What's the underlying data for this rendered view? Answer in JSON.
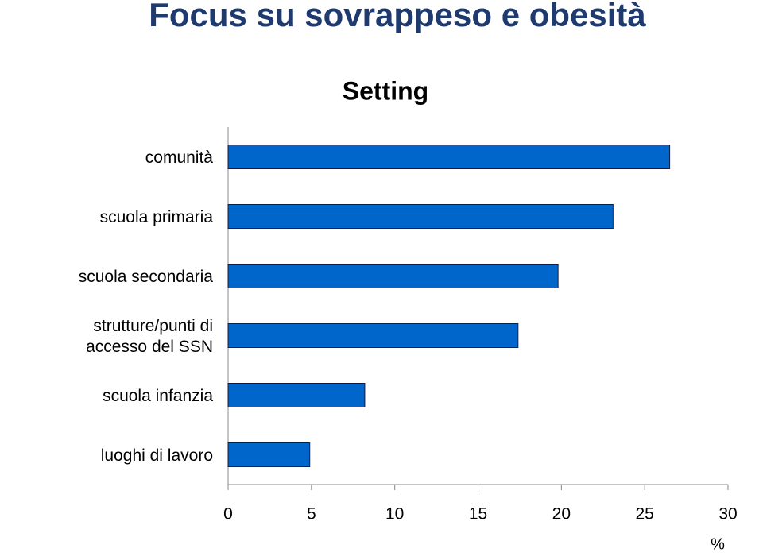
{
  "header": {
    "title": "Focus su sovrappeso e obesità"
  },
  "chart_data": {
    "type": "bar",
    "orientation": "horizontal",
    "title": "Setting",
    "xlabel": "%",
    "categories": [
      "comunità",
      "scuola primaria",
      "scuola secondaria",
      "strutture/punti di accesso del SSN",
      "scuola infanzia",
      "luoghi di lavoro"
    ],
    "values": [
      26.5,
      23.1,
      19.8,
      17.4,
      8.2,
      4.9
    ],
    "color": "#0066cc",
    "xlim": [
      0,
      30
    ],
    "xticks": [
      0,
      5,
      10,
      15,
      20,
      25,
      30
    ]
  }
}
